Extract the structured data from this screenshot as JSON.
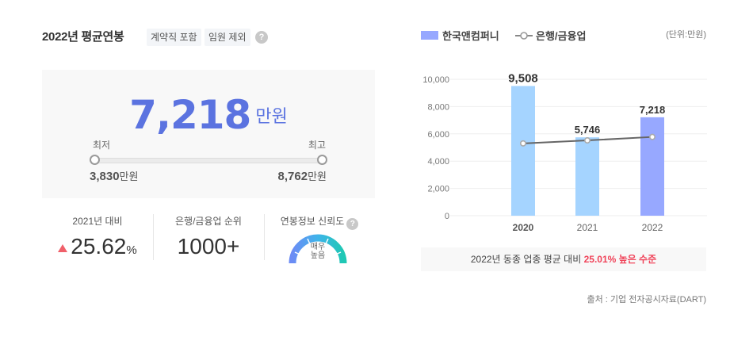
{
  "left": {
    "title": "2022년 평균연봉",
    "tags": [
      "계약직 포함",
      "임원 제외"
    ],
    "help_glyph": "?",
    "salary": {
      "value": "7,218",
      "unit": "만원",
      "min_label": "최저",
      "max_label": "최고",
      "min_value": "3,830",
      "max_value": "8,762",
      "range_unit": "만원"
    },
    "stats": [
      {
        "label": "2021년 대비",
        "value": "25.62",
        "suffix": "%",
        "trend": "up",
        "trend_color": "#f0606a"
      },
      {
        "label": "은행/금융업 순위",
        "value": "1000+"
      },
      {
        "label": "연봉정보 신뢰도",
        "gauge_line1": "매우",
        "gauge_line2": "높음"
      }
    ]
  },
  "right": {
    "legend": {
      "company": "한국앤컴퍼니",
      "industry": "은행/금융업"
    },
    "unit_note": "(단위:만원)",
    "compare": {
      "prefix": "2022년 동종 업종 평균 대비 ",
      "highlight": "25.01% 높은 수준"
    },
    "source": "출처 : 기업 전자공시자료(DART)"
  },
  "colors": {
    "accent": "#5b73e0",
    "bar_past": "#a5d4ff",
    "bar_current": "#97a8ff",
    "line": "#666666",
    "highlight_red": "#f0445a"
  },
  "chart_data": {
    "type": "bar",
    "title": "",
    "xlabel": "",
    "ylabel": "",
    "unit": "만원",
    "categories": [
      "2020",
      "2021",
      "2022"
    ],
    "series": [
      {
        "name": "한국앤컴퍼니",
        "type": "bar",
        "values": [
          9508,
          5746,
          7218
        ],
        "labels": [
          "9,508",
          "5,746",
          "7,218"
        ]
      },
      {
        "name": "은행/금융업",
        "type": "line",
        "values": [
          5300,
          5520,
          5774
        ]
      }
    ],
    "yticks": [
      "0",
      "2,000",
      "4,000",
      "6,000",
      "8,000",
      "10,000"
    ],
    "ylim": [
      0,
      10000
    ],
    "grid": true,
    "legend_position": "top-left"
  }
}
